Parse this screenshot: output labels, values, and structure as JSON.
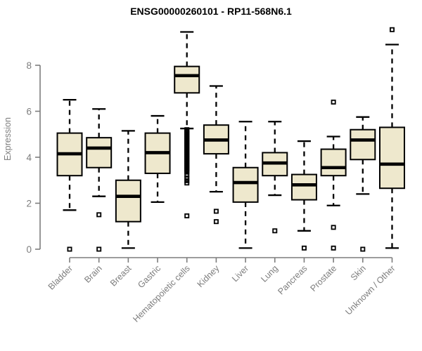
{
  "header": {
    "title": "ENSG00000260101 - RP11-568N6.1"
  },
  "chart_data": {
    "type": "boxplot",
    "title": "ENSG00000260101 - RP11-568N6.1",
    "xlabel": "",
    "ylabel": "Expression",
    "yticks": [
      0,
      2,
      4,
      6,
      8
    ],
    "ylim": [
      0,
      9.7
    ],
    "grid": false,
    "legend": "none",
    "colors": {
      "box_fill": "#EEE8CD",
      "box_stroke": "#000000",
      "median": "#000000",
      "whisker": "#000000",
      "outlier": "#000000",
      "axis": "#7d7d7d",
      "tick_label": "#7d7d7d",
      "title": "#000000"
    },
    "categories": [
      "Bladder",
      "Brain",
      "Breast",
      "Gastric",
      "Hematopoietic cells",
      "Kidney",
      "Liver",
      "Lung",
      "Pancreas",
      "Prostate",
      "Skin",
      "Unknown / Other"
    ],
    "boxes": [
      {
        "category": "Bladder",
        "whisker_low": 1.7,
        "q1": 3.2,
        "median": 4.15,
        "q3": 5.05,
        "whisker_high": 6.5,
        "outliers": [
          0
        ]
      },
      {
        "category": "Brain",
        "whisker_low": 2.3,
        "q1": 3.55,
        "median": 4.4,
        "q3": 4.85,
        "whisker_high": 6.1,
        "outliers": [
          1.5,
          0
        ]
      },
      {
        "category": "Breast",
        "whisker_low": 0.05,
        "q1": 1.2,
        "median": 2.3,
        "q3": 3.0,
        "whisker_high": 5.15,
        "outliers": []
      },
      {
        "category": "Gastric",
        "whisker_low": 2.05,
        "q1": 3.3,
        "median": 4.2,
        "q3": 5.05,
        "whisker_high": 5.8,
        "outliers": []
      },
      {
        "category": "Hematopoietic cells",
        "whisker_low": 5.25,
        "q1": 6.8,
        "median": 7.55,
        "q3": 7.95,
        "whisker_high": 9.45,
        "outliers": [
          5.2,
          5.15,
          5.1,
          5.05,
          5.0,
          4.95,
          4.9,
          4.85,
          4.8,
          4.75,
          4.7,
          4.65,
          4.6,
          4.55,
          4.5,
          4.45,
          4.4,
          4.35,
          4.3,
          4.25,
          4.2,
          4.15,
          4.1,
          4.05,
          4.0,
          3.95,
          3.9,
          3.85,
          3.8,
          3.75,
          3.7,
          3.65,
          3.6,
          3.55,
          3.5,
          3.45,
          3.4,
          3.35,
          3.22,
          3.1,
          2.98,
          2.88,
          1.45
        ]
      },
      {
        "category": "Kidney",
        "whisker_low": 2.5,
        "q1": 4.15,
        "median": 4.75,
        "q3": 5.4,
        "whisker_high": 7.1,
        "outliers": [
          1.65,
          1.2
        ]
      },
      {
        "category": "Liver",
        "whisker_low": 0.05,
        "q1": 2.05,
        "median": 2.9,
        "q3": 3.55,
        "whisker_high": 5.55,
        "outliers": []
      },
      {
        "category": "Lung",
        "whisker_low": 2.35,
        "q1": 3.2,
        "median": 3.75,
        "q3": 4.2,
        "whisker_high": 5.55,
        "outliers": [
          0.8
        ]
      },
      {
        "category": "Pancreas",
        "whisker_low": 0.8,
        "q1": 2.15,
        "median": 2.8,
        "q3": 3.25,
        "whisker_high": 4.7,
        "outliers": [
          0.05
        ]
      },
      {
        "category": "Prostate",
        "whisker_low": 1.9,
        "q1": 3.2,
        "median": 3.55,
        "q3": 4.35,
        "whisker_high": 4.9,
        "outliers": [
          6.4,
          0.95,
          0.05
        ]
      },
      {
        "category": "Skin",
        "whisker_low": 2.4,
        "q1": 3.9,
        "median": 4.75,
        "q3": 5.2,
        "whisker_high": 5.75,
        "outliers": [
          0
        ]
      },
      {
        "category": "Unknown / Other",
        "whisker_low": 0.05,
        "q1": 2.65,
        "median": 3.7,
        "q3": 5.3,
        "whisker_high": 8.9,
        "outliers": [
          9.55
        ]
      }
    ]
  }
}
